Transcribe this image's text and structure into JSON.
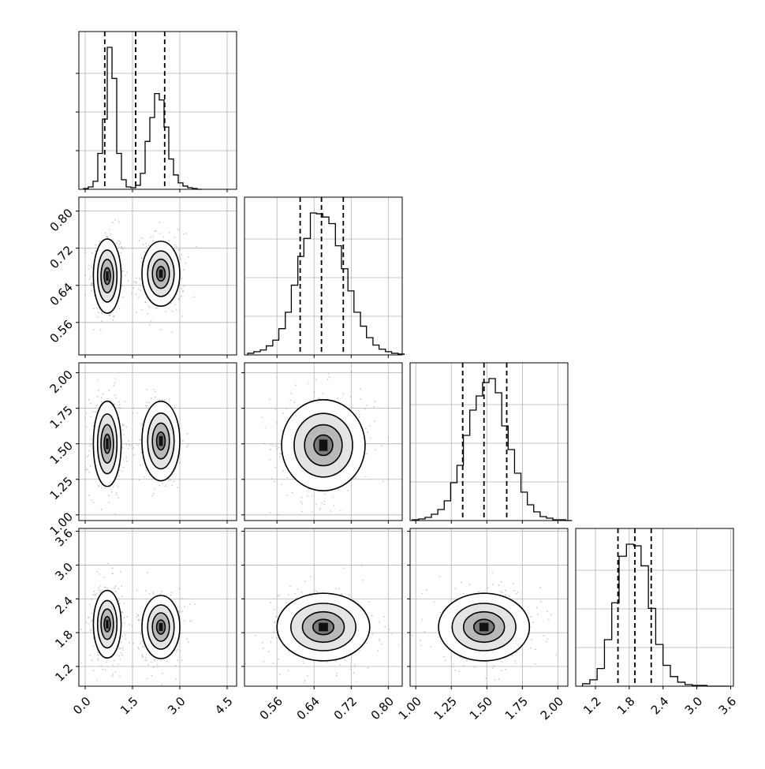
{
  "chart_data": {
    "type": "corner",
    "title": "",
    "grid": true,
    "parameters": [
      {
        "index": 0,
        "range": [
          -0.2,
          4.8
        ],
        "ticks": [
          "0.0",
          "1.5",
          "3.0",
          "4.5"
        ],
        "tick_values": [
          0.0,
          1.5,
          3.0,
          4.5
        ],
        "quantiles": [
          0.62,
          1.6,
          2.52
        ]
      },
      {
        "index": 1,
        "range": [
          0.49,
          0.83
        ],
        "ticks": [
          "0.56",
          "0.64",
          "0.72",
          "0.80"
        ],
        "tick_values": [
          0.56,
          0.64,
          0.72,
          0.8
        ],
        "quantiles": [
          0.61,
          0.656,
          0.703
        ]
      },
      {
        "index": 2,
        "range": [
          0.96,
          2.07
        ],
        "ticks": [
          "1.00",
          "1.25",
          "1.50",
          "1.75",
          "2.00"
        ],
        "tick_values": [
          1.0,
          1.25,
          1.5,
          1.75,
          2.0
        ],
        "quantiles": [
          1.33,
          1.48,
          1.64
        ]
      },
      {
        "index": 3,
        "range": [
          0.85,
          3.65
        ],
        "ticks": [
          "1.2",
          "1.8",
          "2.4",
          "3.0",
          "3.6"
        ],
        "tick_values": [
          1.2,
          1.8,
          2.4,
          3.0,
          3.6
        ],
        "quantiles": [
          1.6,
          1.9,
          2.19
        ]
      }
    ],
    "histograms": [
      {
        "param": 0,
        "bins": [
          -0.05,
          0.1,
          0.25,
          0.4,
          0.55,
          0.7,
          0.85,
          1.0,
          1.15,
          1.3,
          1.45,
          1.6,
          1.75,
          1.9,
          2.05,
          2.2,
          2.35,
          2.5,
          2.65,
          2.8,
          2.95,
          3.1,
          3.25,
          3.4,
          3.55,
          3.7
        ],
        "counts": [
          1,
          3,
          10,
          45,
          88,
          178,
          139,
          45,
          12,
          3,
          2,
          5,
          20,
          60,
          90,
          120,
          112,
          78,
          38,
          18,
          8,
          4,
          2,
          1,
          0
        ]
      },
      {
        "param": 1,
        "bins": [
          0.497,
          0.51,
          0.524,
          0.537,
          0.551,
          0.564,
          0.578,
          0.591,
          0.605,
          0.618,
          0.632,
          0.645,
          0.659,
          0.672,
          0.686,
          0.699,
          0.713,
          0.726,
          0.74,
          0.753,
          0.767,
          0.78,
          0.794,
          0.807,
          0.821,
          0.834
        ],
        "counts": [
          2,
          4,
          6,
          11,
          18,
          32,
          52,
          85,
          120,
          142,
          173,
          172,
          168,
          160,
          133,
          105,
          78,
          52,
          35,
          21,
          12,
          7,
          4,
          2,
          1
        ]
      },
      {
        "param": 2,
        "bins": [
          0.975,
          1.02,
          1.065,
          1.11,
          1.155,
          1.2,
          1.245,
          1.29,
          1.335,
          1.38,
          1.425,
          1.47,
          1.515,
          1.56,
          1.605,
          1.65,
          1.695,
          1.74,
          1.785,
          1.83,
          1.875,
          1.92,
          1.965,
          2.01,
          2.055,
          2.1
        ],
        "counts": [
          1,
          2,
          4,
          8,
          14,
          25,
          48,
          70,
          108,
          140,
          158,
          175,
          180,
          162,
          120,
          90,
          60,
          36,
          20,
          11,
          5,
          3,
          1,
          1,
          0
        ]
      },
      {
        "param": 3,
        "bins": [
          0.97,
          1.1,
          1.23,
          1.36,
          1.49,
          1.62,
          1.75,
          1.88,
          2.01,
          2.14,
          2.27,
          2.4,
          2.53,
          2.66,
          2.79,
          2.92,
          3.05,
          3.18,
          3.31,
          3.44,
          3.57
        ],
        "counts": [
          3,
          8,
          22,
          58,
          104,
          162,
          177,
          175,
          150,
          97,
          52,
          26,
          12,
          5,
          2,
          1,
          1,
          0,
          0,
          0
        ]
      }
    ],
    "pairs": [
      {
        "x": 0,
        "y": 1,
        "modes": [
          {
            "cx": 0.7,
            "cy": 0.66,
            "sx": 0.22,
            "sy": 0.04,
            "w": 1.0
          },
          {
            "cx": 2.4,
            "cy": 0.665,
            "sx": 0.3,
            "sy": 0.035,
            "w": 0.8
          }
        ]
      },
      {
        "x": 0,
        "y": 2,
        "modes": [
          {
            "cx": 0.7,
            "cy": 1.5,
            "sx": 0.22,
            "sy": 0.15,
            "w": 1.0
          },
          {
            "cx": 2.4,
            "cy": 1.52,
            "sx": 0.3,
            "sy": 0.14,
            "w": 0.8
          }
        ]
      },
      {
        "x": 1,
        "y": 2,
        "modes": [
          {
            "cx": 0.66,
            "cy": 1.49,
            "sx": 0.045,
            "sy": 0.16,
            "w": 1.0
          }
        ]
      },
      {
        "x": 0,
        "y": 3,
        "modes": [
          {
            "cx": 0.7,
            "cy": 1.95,
            "sx": 0.22,
            "sy": 0.3,
            "w": 1.0
          },
          {
            "cx": 2.4,
            "cy": 1.9,
            "sx": 0.3,
            "sy": 0.28,
            "w": 0.8
          }
        ]
      },
      {
        "x": 1,
        "y": 3,
        "modes": [
          {
            "cx": 0.66,
            "cy": 1.9,
            "sx": 0.05,
            "sy": 0.3,
            "w": 1.0
          }
        ]
      },
      {
        "x": 2,
        "y": 3,
        "modes": [
          {
            "cx": 1.48,
            "cy": 1.9,
            "sx": 0.16,
            "sy": 0.3,
            "w": 1.0
          }
        ]
      }
    ],
    "colors": {
      "line": "#000000",
      "grid": "#b0b0b0",
      "points": "#8a8a8a"
    }
  }
}
